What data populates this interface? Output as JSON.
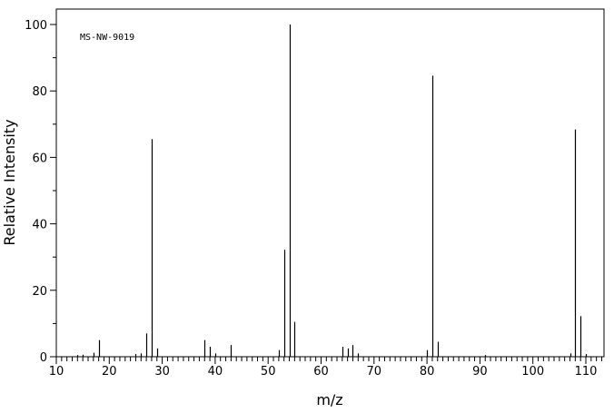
{
  "chart_data": {
    "type": "bar",
    "annotation": "MS-NW-9019",
    "xlabel": "m/z",
    "ylabel": "Relative Intensity",
    "xlim": [
      10,
      113
    ],
    "ylim": [
      0,
      100
    ],
    "x_major_ticks": [
      10,
      20,
      30,
      40,
      50,
      60,
      70,
      80,
      90,
      100,
      110
    ],
    "y_major_ticks": [
      0,
      20,
      40,
      60,
      80,
      100
    ],
    "grid": false,
    "bar_color": "#000000",
    "peaks": [
      {
        "mz": 14,
        "intensity": 0.5
      },
      {
        "mz": 15,
        "intensity": 0.6
      },
      {
        "mz": 17,
        "intensity": 1.2
      },
      {
        "mz": 18,
        "intensity": 5.0
      },
      {
        "mz": 25,
        "intensity": 0.8
      },
      {
        "mz": 26,
        "intensity": 1.0
      },
      {
        "mz": 27,
        "intensity": 7.0
      },
      {
        "mz": 28,
        "intensity": 65.5
      },
      {
        "mz": 29,
        "intensity": 2.5
      },
      {
        "mz": 38,
        "intensity": 5.0
      },
      {
        "mz": 39,
        "intensity": 3.0
      },
      {
        "mz": 40,
        "intensity": 1.0
      },
      {
        "mz": 43,
        "intensity": 3.5
      },
      {
        "mz": 52,
        "intensity": 2.0
      },
      {
        "mz": 53,
        "intensity": 32.2
      },
      {
        "mz": 54,
        "intensity": 100.0
      },
      {
        "mz": 55,
        "intensity": 10.5
      },
      {
        "mz": 64,
        "intensity": 3.0
      },
      {
        "mz": 65,
        "intensity": 2.5
      },
      {
        "mz": 66,
        "intensity": 3.5
      },
      {
        "mz": 67,
        "intensity": 1.0
      },
      {
        "mz": 80,
        "intensity": 2.0
      },
      {
        "mz": 81,
        "intensity": 84.6
      },
      {
        "mz": 82,
        "intensity": 4.5
      },
      {
        "mz": 91,
        "intensity": 0.5
      },
      {
        "mz": 107,
        "intensity": 1.0
      },
      {
        "mz": 108,
        "intensity": 68.4
      },
      {
        "mz": 109,
        "intensity": 12.2
      },
      {
        "mz": 110,
        "intensity": 0.8
      }
    ]
  }
}
